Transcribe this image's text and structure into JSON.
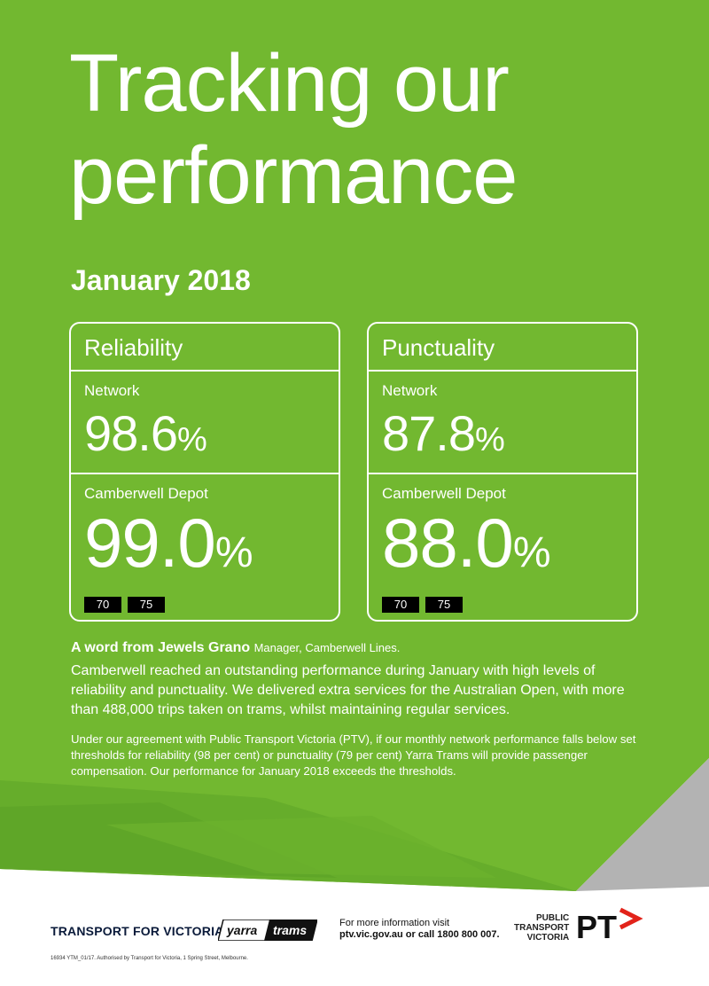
{
  "colors": {
    "green": "#72b830",
    "green_dark": "#64a82a",
    "grey": "#b3b3b3",
    "white": "#ffffff",
    "black": "#000000",
    "red": "#e2231a"
  },
  "header": {
    "title_line1": "Tracking our",
    "title_line2": "performance",
    "subtitle": "January 2018"
  },
  "reliability": {
    "heading": "Reliability",
    "network_label": "Network",
    "network_value": "98.6",
    "depot_label": "Camberwell Depot",
    "depot_value": "99.0",
    "percent": "%",
    "routes": [
      "70",
      "75"
    ]
  },
  "punctuality": {
    "heading": "Punctuality",
    "network_label": "Network",
    "network_value": "87.8",
    "depot_label": "Camberwell Depot",
    "depot_value": "88.0",
    "percent": "%",
    "routes": [
      "70",
      "75"
    ]
  },
  "message": {
    "heading": "A word from Jewels Grano",
    "role": "Manager, Camberwell Lines.",
    "body": "Camberwell reached an outstanding performance during January with high levels of reliability and punctuality. We delivered extra services for the Australian Open, with more than 488,000 trips taken on trams, whilst maintaining regular services.",
    "fine_print": "Under our agreement with Public Transport Victoria (PTV), if our monthly network performance falls below set thresholds for reliability (98 per cent) or punctuality (79 per cent) Yarra Trams will provide passenger compensation. Our performance for January 2018 exceeds the thresholds."
  },
  "footer": {
    "tfv_logo": "TRANSPORT FOR VICTORIA",
    "yarra_logo": "yarra trams",
    "more_info_line1": "For more information visit",
    "more_info_line2": "ptv.vic.gov.au or call 1800 800 007.",
    "ptv_line1": "PUBLIC",
    "ptv_line2": "TRANSPORT",
    "ptv_line3": "VICTORIA",
    "pt_logo": "PT",
    "authorised": "16934 YTM_01/17. Authorised by Transport for Victoria, 1 Spring Street, Melbourne."
  }
}
